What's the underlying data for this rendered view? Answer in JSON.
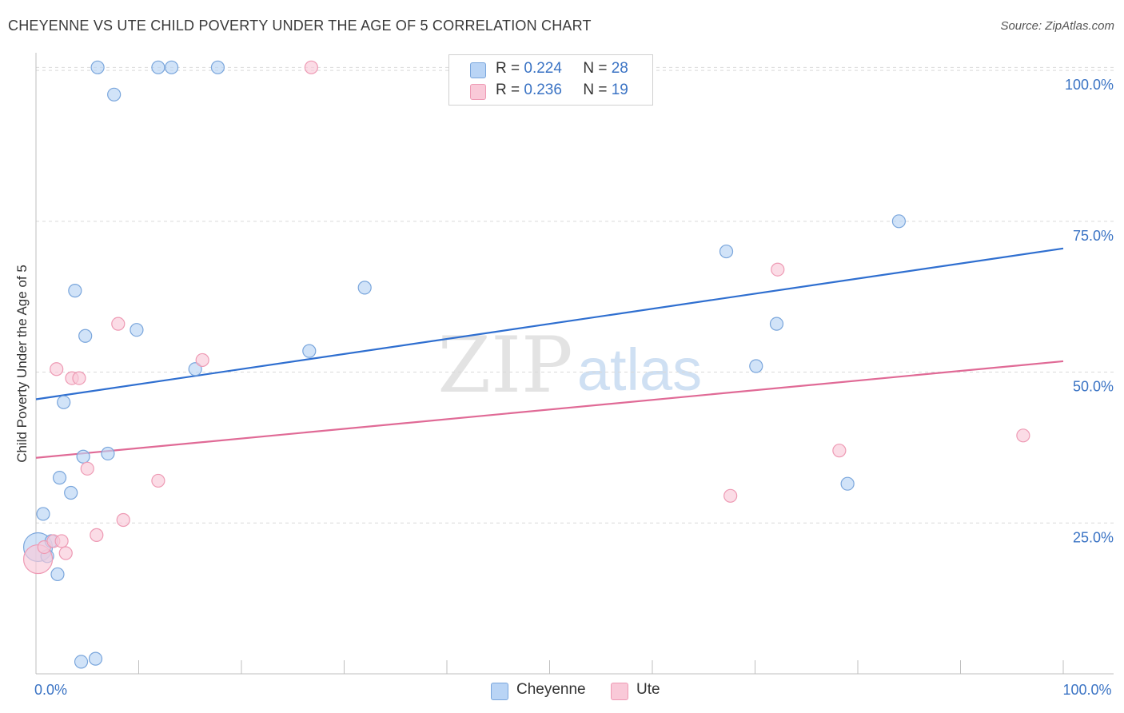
{
  "header": {
    "title": "CHEYENNE VS UTE CHILD POVERTY UNDER THE AGE OF 5 CORRELATION CHART",
    "source": "Source: ZipAtlas.com"
  },
  "watermark": {
    "zip": "ZIP",
    "atlas": "atlas"
  },
  "legend": {
    "cheyenne": {
      "r_label": "R =",
      "r_value": "0.224",
      "n_label": "N =",
      "n_value": "28"
    },
    "ute": {
      "r_label": "R =",
      "r_value": "0.236",
      "n_label": "N =",
      "n_value": "19"
    }
  },
  "bottom_legend": {
    "cheyenne": "Cheyenne",
    "ute": "Ute"
  },
  "colors": {
    "cheyenne_fill": "#b9d4f5",
    "cheyenne_stroke": "#7aa6dc",
    "cheyenne_line": "#2f6fd0",
    "ute_fill": "#f9c9d8",
    "ute_stroke": "#ee9ab4",
    "ute_line": "#e06a96",
    "axis_label": "#3a73c4",
    "grid": "#d9d9d9"
  },
  "chart_data": {
    "type": "scatter",
    "title": "CHEYENNE VS UTE CHILD POVERTY UNDER THE AGE OF 5 CORRELATION CHART",
    "xlabel": "",
    "ylabel": "Child Poverty Under the Age of 5",
    "xlim": [
      0,
      100
    ],
    "ylim": [
      0,
      102
    ],
    "x_tick_labels": [
      {
        "value": 0,
        "label": "0.0%"
      },
      {
        "value": 100,
        "label": "100.0%"
      }
    ],
    "y_tick_labels": [
      {
        "value": 25,
        "label": "25.0%"
      },
      {
        "value": 50,
        "label": "50.0%"
      },
      {
        "value": 75,
        "label": "75.0%"
      },
      {
        "value": 100,
        "label": "100.0%"
      }
    ],
    "series": [
      {
        "name": "Cheyenne",
        "r": 0.224,
        "n": 28,
        "trend": {
          "x": [
            0,
            100
          ],
          "y": [
            45.5,
            70.5
          ]
        },
        "points": [
          {
            "x": 0.2,
            "y": 21.0,
            "size": "large"
          },
          {
            "x": 0.7,
            "y": 26.5
          },
          {
            "x": 1.1,
            "y": 19.5
          },
          {
            "x": 1.5,
            "y": 22.0
          },
          {
            "x": 2.1,
            "y": 16.5
          },
          {
            "x": 2.3,
            "y": 32.5
          },
          {
            "x": 2.7,
            "y": 45.0
          },
          {
            "x": 3.4,
            "y": 30.0
          },
          {
            "x": 3.8,
            "y": 63.5
          },
          {
            "x": 4.4,
            "y": 2.0
          },
          {
            "x": 4.6,
            "y": 36.0
          },
          {
            "x": 4.8,
            "y": 56.0
          },
          {
            "x": 5.8,
            "y": 2.5
          },
          {
            "x": 6.0,
            "y": 100.5
          },
          {
            "x": 7.0,
            "y": 36.5
          },
          {
            "x": 7.6,
            "y": 96.0
          },
          {
            "x": 9.8,
            "y": 57.0
          },
          {
            "x": 11.9,
            "y": 100.5
          },
          {
            "x": 13.2,
            "y": 100.5
          },
          {
            "x": 15.5,
            "y": 50.5
          },
          {
            "x": 17.7,
            "y": 100.5
          },
          {
            "x": 26.6,
            "y": 53.5
          },
          {
            "x": 32.0,
            "y": 64.0
          },
          {
            "x": 67.2,
            "y": 70.0
          },
          {
            "x": 70.1,
            "y": 51.0
          },
          {
            "x": 72.1,
            "y": 58.0
          },
          {
            "x": 79.0,
            "y": 31.5
          },
          {
            "x": 84.0,
            "y": 75.0
          }
        ]
      },
      {
        "name": "Ute",
        "r": 0.236,
        "n": 19,
        "trend": {
          "x": [
            0,
            100
          ],
          "y": [
            35.8,
            51.8
          ]
        },
        "points": [
          {
            "x": 0.2,
            "y": 19.0,
            "size": "large"
          },
          {
            "x": 0.8,
            "y": 21.0
          },
          {
            "x": 1.7,
            "y": 22.0
          },
          {
            "x": 2.0,
            "y": 50.5
          },
          {
            "x": 2.5,
            "y": 22.0
          },
          {
            "x": 2.9,
            "y": 20.0
          },
          {
            "x": 3.5,
            "y": 49.0
          },
          {
            "x": 4.2,
            "y": 49.0
          },
          {
            "x": 5.0,
            "y": 34.0
          },
          {
            "x": 5.9,
            "y": 23.0
          },
          {
            "x": 8.0,
            "y": 58.0
          },
          {
            "x": 8.5,
            "y": 25.5
          },
          {
            "x": 11.9,
            "y": 32.0
          },
          {
            "x": 16.2,
            "y": 52.0
          },
          {
            "x": 26.8,
            "y": 100.5
          },
          {
            "x": 67.6,
            "y": 29.5
          },
          {
            "x": 72.2,
            "y": 67.0
          },
          {
            "x": 78.2,
            "y": 37.0
          },
          {
            "x": 96.1,
            "y": 39.5
          }
        ]
      }
    ]
  }
}
